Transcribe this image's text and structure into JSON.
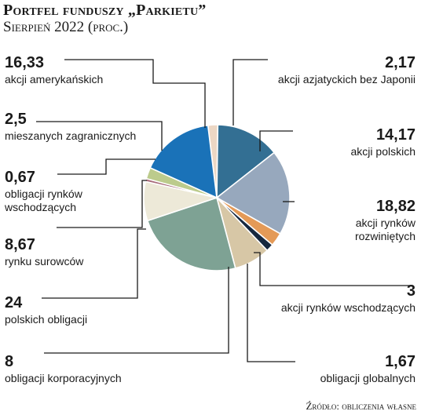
{
  "header": {
    "title": "Portfel funduszy „Parkietu”",
    "subtitle": "Sierpień 2022 (proc.)"
  },
  "footer": {
    "source": "Źródło: obliczenia własne"
  },
  "chart_data": {
    "type": "pie",
    "title": "Portfel funduszy „Parkietu”",
    "subtitle": "Sierpień 2022 (proc.)",
    "slices": [
      {
        "value": 2.17,
        "value_label": "2,17",
        "label_lines": [
          "akcji azjatyckich bez Japonii"
        ],
        "color": "#ecd7c4"
      },
      {
        "value": 14.17,
        "value_label": "14,17",
        "label_lines": [
          "akcji polskich"
        ],
        "color": "#336f93"
      },
      {
        "value": 18.82,
        "value_label": "18,82",
        "label_lines": [
          "akcji rynków",
          "rozwiniętych"
        ],
        "color": "#97a8bd"
      },
      {
        "value": 3,
        "value_label": "3",
        "label_lines": [
          "akcji rynków wschodzących"
        ],
        "color": "#e49a57"
      },
      {
        "value": 1.67,
        "value_label": "1,67",
        "label_lines": [
          "obligacji globalnych"
        ],
        "color": "#16283f"
      },
      {
        "value": 8,
        "value_label": "8",
        "label_lines": [
          "obligacji korporacyjnych"
        ],
        "color": "#d7c7a6"
      },
      {
        "value": 24,
        "value_label": "24",
        "label_lines": [
          "polskich obligacji"
        ],
        "color": "#7ea294"
      },
      {
        "value": 8.67,
        "value_label": "8,67",
        "label_lines": [
          "rynku surowców"
        ],
        "color": "#ede9d8"
      },
      {
        "value": 0.67,
        "value_label": "0,67",
        "label_lines": [
          "obligacji rynków",
          "wschodzących"
        ],
        "color": "#a96d7b"
      },
      {
        "value": 2.5,
        "value_label": "2,5",
        "label_lines": [
          "mieszanych zagranicznych"
        ],
        "color": "#bccb8c"
      },
      {
        "value": 16.33,
        "value_label": "16,33",
        "label_lines": [
          "akcji amerykańskich"
        ],
        "color": "#1a72b8"
      }
    ]
  }
}
